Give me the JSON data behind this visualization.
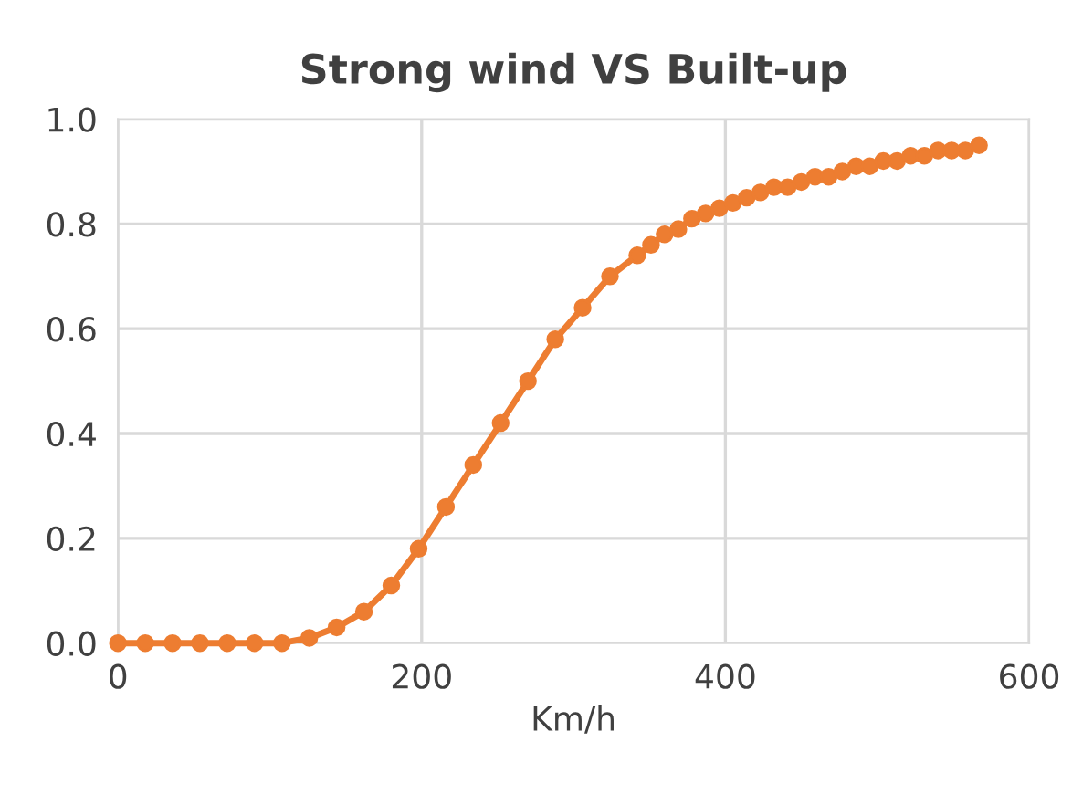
{
  "chart_data": {
    "type": "line",
    "title": "Strong wind VS Built-up",
    "xlabel": "Km/h",
    "xlim": [
      0,
      600
    ],
    "xticks": [
      0,
      200,
      400,
      600
    ],
    "ylim": [
      0,
      1.0
    ],
    "yticks": [
      {
        "value": 0,
        "label": "0.0"
      },
      {
        "value": 0.2,
        "label": "0.2"
      },
      {
        "value": 0.4,
        "label": "0.4"
      },
      {
        "value": 0.6,
        "label": "0.6"
      },
      {
        "value": 0.8,
        "label": "0.8"
      },
      {
        "value": 1.0,
        "label": "1.0"
      }
    ],
    "grid": true,
    "legend": false,
    "marker": "circle",
    "line_style": "solid",
    "series": [
      {
        "color": "#ed7d31",
        "x": [
          0,
          18,
          36,
          54,
          72,
          90,
          108,
          126,
          144,
          162,
          180,
          198,
          216,
          234,
          252,
          270,
          288,
          306,
          324,
          342,
          351,
          360,
          369,
          378,
          387,
          396,
          405,
          414,
          423,
          432,
          441,
          450,
          459,
          468,
          477,
          486,
          495,
          504,
          513,
          522,
          531,
          540,
          549,
          558,
          567
        ],
        "values": [
          0,
          0,
          0,
          0,
          0,
          0,
          0,
          0.01,
          0.03,
          0.06,
          0.11,
          0.18,
          0.26,
          0.34,
          0.42,
          0.5,
          0.58,
          0.64,
          0.7,
          0.74,
          0.76,
          0.78,
          0.79,
          0.81,
          0.82,
          0.83,
          0.84,
          0.85,
          0.86,
          0.87,
          0.87,
          0.88,
          0.89,
          0.89,
          0.9,
          0.91,
          0.91,
          0.92,
          0.92,
          0.93,
          0.93,
          0.94,
          0.94,
          0.94,
          0.95
        ]
      }
    ]
  }
}
